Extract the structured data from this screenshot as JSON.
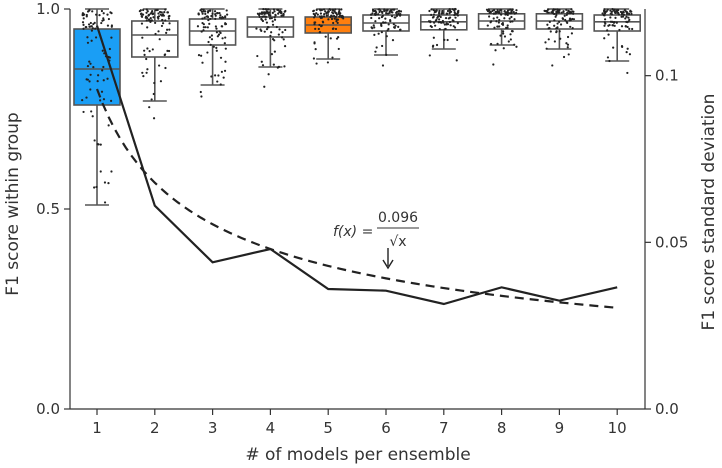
{
  "chart_data": {
    "type": "box+line",
    "xlabel": "# of models per ensemble",
    "ylabel_left": "F1 score within group",
    "ylabel_right": "F1 score standard deviation",
    "x": [
      1,
      2,
      3,
      4,
      5,
      6,
      7,
      8,
      9,
      10
    ],
    "ylim_left": [
      0,
      1.0
    ],
    "ylim_right": [
      0,
      0.12
    ],
    "yticks_left": [
      "0.0",
      "0.5",
      "1.0"
    ],
    "yticks_right": [
      "0.0",
      "0.05",
      "0.1"
    ],
    "grid": false,
    "boxes": [
      {
        "x": 1,
        "whislo": 0.51,
        "q1": 0.76,
        "med": 0.85,
        "q3": 0.95,
        "whishi": 1.0,
        "fill": "#1a9ef5"
      },
      {
        "x": 2,
        "whislo": 0.77,
        "q1": 0.88,
        "med": 0.935,
        "q3": 0.97,
        "whishi": 1.0,
        "fill": "#ffffff"
      },
      {
        "x": 3,
        "whislo": 0.81,
        "q1": 0.91,
        "med": 0.945,
        "q3": 0.975,
        "whishi": 1.0,
        "fill": "#ffffff"
      },
      {
        "x": 4,
        "whislo": 0.855,
        "q1": 0.93,
        "med": 0.955,
        "q3": 0.98,
        "whishi": 1.0,
        "fill": "#ffffff"
      },
      {
        "x": 5,
        "whislo": 0.875,
        "q1": 0.94,
        "med": 0.96,
        "q3": 0.98,
        "whishi": 1.0,
        "fill": "#ff7f0e"
      },
      {
        "x": 6,
        "whislo": 0.885,
        "q1": 0.945,
        "med": 0.965,
        "q3": 0.985,
        "whishi": 1.0,
        "fill": "#ffffff"
      },
      {
        "x": 7,
        "whislo": 0.9,
        "q1": 0.948,
        "med": 0.968,
        "q3": 0.985,
        "whishi": 1.0,
        "fill": "#ffffff"
      },
      {
        "x": 8,
        "whislo": 0.91,
        "q1": 0.95,
        "med": 0.97,
        "q3": 0.988,
        "whishi": 1.0,
        "fill": "#ffffff"
      },
      {
        "x": 9,
        "whislo": 0.9,
        "q1": 0.95,
        "med": 0.97,
        "q3": 0.988,
        "whishi": 1.0,
        "fill": "#ffffff"
      },
      {
        "x": 10,
        "whislo": 0.87,
        "q1": 0.945,
        "med": 0.968,
        "q3": 0.985,
        "whishi": 1.0,
        "fill": "#ffffff"
      }
    ],
    "std_line": [
      0.115,
      0.061,
      0.044,
      0.048,
      0.036,
      0.0355,
      0.0315,
      0.0365,
      0.0325,
      0.0365
    ],
    "fit_line": {
      "coefficient": 0.096,
      "style": "dashed"
    },
    "annotation": {
      "text": "f(x) = 0.096/√x",
      "arrow_target_x": 6
    },
    "colors": {
      "highlight_1": "#1a9ef5",
      "highlight_5": "#ff7f0e",
      "line": "#222222"
    }
  }
}
